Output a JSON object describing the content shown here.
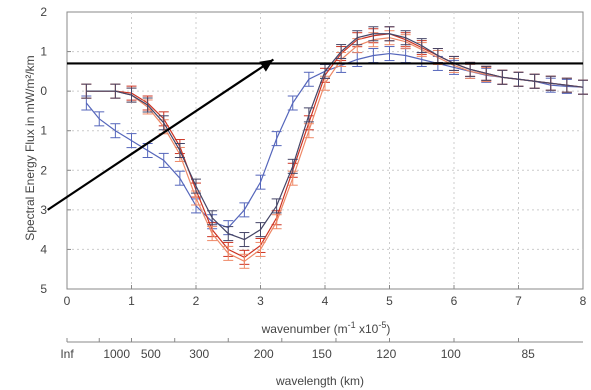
{
  "chart_data": {
    "type": "line",
    "xlabel": "wavenumber (m",
    "xlabel_sup": "-1",
    "xlabel_rest": " x10",
    "xlabel_sup2": "-5",
    "xlabel_end": ")",
    "ylabel": "Spectral Energy Flux in mW/m²/km",
    "secondary_xlabel": "wavelength (km)",
    "xlim": [
      0,
      8
    ],
    "ylim": [
      -5,
      2
    ],
    "x_ticks": [
      0,
      1,
      2,
      3,
      4,
      5,
      6,
      7,
      8
    ],
    "x_tick_labels": [
      "0",
      "1",
      "2",
      "3",
      "4",
      "5",
      "6",
      "7",
      "8"
    ],
    "y_ticks": [
      2,
      1,
      0,
      -1,
      -2,
      -3,
      -4,
      -5
    ],
    "y_tick_labels": [
      "2",
      "1",
      "0",
      "1",
      "2",
      "3",
      "4",
      "5"
    ],
    "secondary_x_ticks": [
      0,
      0.5,
      1,
      1.67,
      2.5,
      3.33,
      4.17,
      5,
      6,
      7
    ],
    "secondary_x_tick_labels": [
      "Inf",
      "1000",
      "500",
      "300",
      "200",
      "150",
      "120",
      "100",
      "85"
    ],
    "secondary_label_positions": [
      0,
      0.77,
      1.3,
      2.05,
      3.05,
      3.95,
      4.95,
      5.95,
      7.15
    ],
    "grid": true,
    "series": [
      {
        "color": "#5566bb",
        "x": [
          0.3,
          0.5,
          0.75,
          1.0,
          1.25,
          1.5,
          1.75,
          2.0,
          2.25,
          2.5,
          2.75,
          3.0,
          3.25,
          3.5,
          3.75,
          4.0,
          4.25,
          4.5,
          4.75,
          5.0,
          5.25,
          5.5,
          5.75,
          6.0,
          6.25,
          6.5,
          6.75,
          7.0,
          7.25,
          7.5,
          7.75,
          8.0
        ],
        "y": [
          -0.3,
          -0.7,
          -1.0,
          -1.25,
          -1.5,
          -1.75,
          -2.2,
          -2.9,
          -3.3,
          -3.45,
          -3.0,
          -2.3,
          -1.2,
          -0.3,
          0.3,
          0.5,
          0.65,
          0.8,
          0.9,
          0.95,
          0.9,
          0.8,
          0.7,
          0.6,
          0.5,
          0.4,
          0.35,
          0.3,
          0.25,
          0.15,
          0.12,
          0.1
        ]
      },
      {
        "color": "#cc3322",
        "x": [
          0.3,
          0.75,
          1.0,
          1.25,
          1.5,
          1.75,
          2.0,
          2.25,
          2.5,
          2.75,
          3.0,
          3.25,
          3.5,
          3.75,
          4.0,
          4.25,
          4.5,
          4.75,
          5.0,
          5.25,
          5.5,
          5.75,
          6.0,
          6.25,
          6.5,
          6.75,
          7.0,
          7.25,
          7.5,
          7.75,
          8.0
        ],
        "y": [
          0.0,
          0.0,
          -0.05,
          -0.3,
          -0.7,
          -1.4,
          -2.5,
          -3.5,
          -4.0,
          -4.2,
          -3.9,
          -3.2,
          -2.0,
          -0.8,
          0.4,
          0.95,
          1.3,
          1.4,
          1.45,
          1.3,
          1.1,
          0.9,
          0.7,
          0.55,
          0.45,
          0.35,
          0.3,
          0.25,
          0.2,
          0.15,
          0.1
        ]
      },
      {
        "color": "#ee8866",
        "x": [
          0.3,
          0.75,
          1.0,
          1.25,
          1.5,
          1.75,
          2.0,
          2.25,
          2.5,
          2.75,
          3.0,
          3.25,
          3.5,
          3.75,
          4.0,
          4.25,
          4.5,
          4.75,
          5.0,
          5.25,
          5.5,
          5.75,
          6.0,
          6.25,
          6.5,
          6.75,
          7.0,
          7.25,
          7.5,
          7.75,
          8.0
        ],
        "y": [
          0.0,
          0.0,
          -0.1,
          -0.4,
          -0.9,
          -1.6,
          -2.7,
          -3.6,
          -4.1,
          -4.3,
          -4.0,
          -3.3,
          -2.2,
          -1.0,
          0.2,
          0.8,
          1.15,
          1.3,
          1.35,
          1.25,
          1.05,
          0.85,
          0.65,
          0.5,
          0.42,
          0.35,
          0.3,
          0.25,
          0.2,
          0.15,
          0.1
        ]
      },
      {
        "color": "#444466",
        "x": [
          0.3,
          0.75,
          1.0,
          1.25,
          1.5,
          1.75,
          2.0,
          2.25,
          2.5,
          2.75,
          3.0,
          3.25,
          3.5,
          3.75,
          4.0,
          4.25,
          4.5,
          4.75,
          5.0,
          5.25,
          5.5,
          5.75,
          6.0,
          6.25,
          6.5,
          6.75,
          7.0,
          7.25,
          7.5,
          7.75,
          8.0
        ],
        "y": [
          0.0,
          0.0,
          -0.1,
          -0.35,
          -0.8,
          -1.5,
          -2.4,
          -3.2,
          -3.6,
          -3.75,
          -3.5,
          -2.9,
          -1.9,
          -0.6,
          0.5,
          1.0,
          1.35,
          1.45,
          1.45,
          1.35,
          1.15,
          0.9,
          0.7,
          0.55,
          0.45,
          0.35,
          0.3,
          0.25,
          0.2,
          0.15,
          0.1
        ]
      }
    ],
    "annotations": [
      {
        "type": "horizontal-line",
        "x_from": 0.0,
        "x_to": 8.0,
        "y": 0.7,
        "color": "#000000"
      },
      {
        "type": "arrow",
        "from_x": -0.3,
        "from_y": -3.0,
        "to_x": 3.2,
        "to_y": 0.8,
        "color": "#000000"
      }
    ]
  }
}
